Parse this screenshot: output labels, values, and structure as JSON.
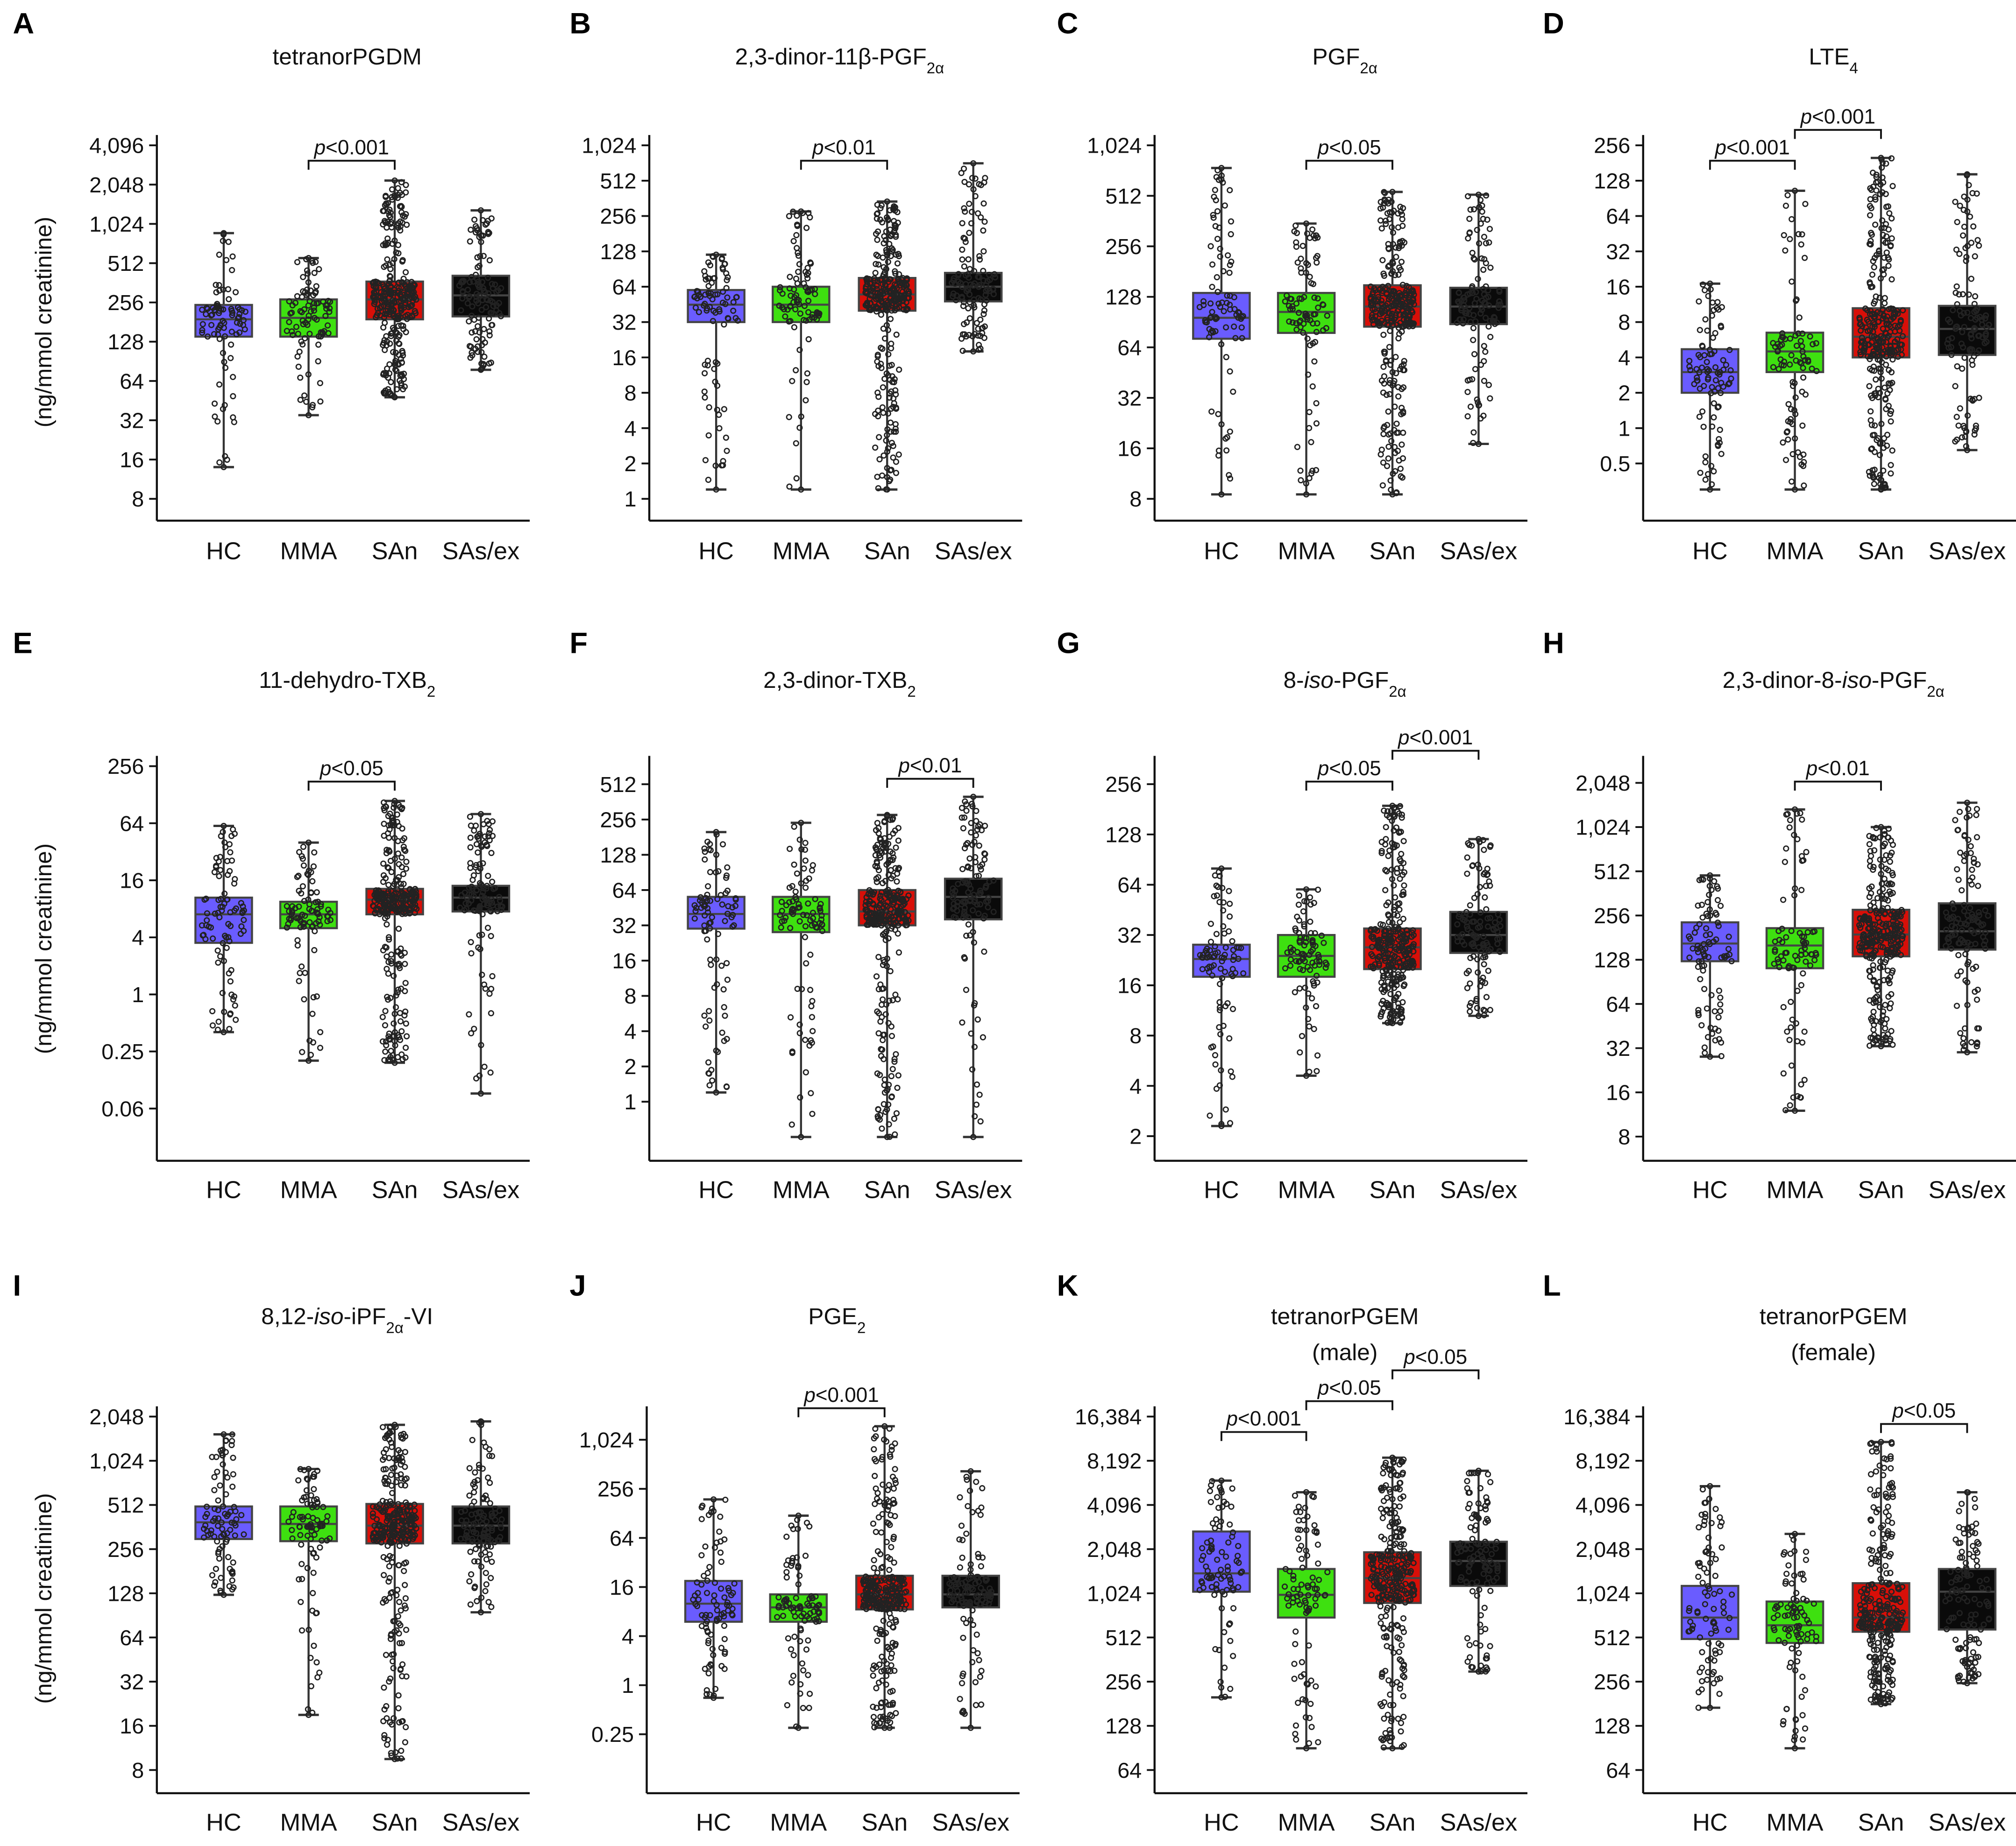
{
  "chart_data": {
    "type": "box",
    "groups": [
      "HC",
      "MMA",
      "SAn",
      "SAs/ex"
    ],
    "colors": {
      "HC": "#6a5cff",
      "MMA": "#3ee010",
      "SAn": "#d80f08",
      "SAs/ex": "#0a0a0a"
    },
    "ylabel": "(ng/mmol creatinine)",
    "yscale": "log2",
    "panels": [
      {
        "letter": "A",
        "title": [
          [
            {
              "t": "tetranorPGDM"
            }
          ]
        ],
        "ylim": [
          8,
          4096
        ],
        "ticks": [
          [
            "4,096",
            4096
          ],
          [
            "2,048",
            2048
          ],
          [
            "1,024",
            1024
          ],
          [
            "512",
            512
          ],
          [
            "256",
            256
          ],
          [
            "128",
            128
          ],
          [
            "64",
            64
          ],
          [
            "32",
            32
          ],
          [
            "16",
            16
          ],
          [
            "8",
            8
          ]
        ],
        "boxes": [
          [
            14,
            140,
            190,
            245,
            870
          ],
          [
            35,
            140,
            195,
            270,
            560
          ],
          [
            48,
            190,
            270,
            370,
            2200
          ],
          [
            78,
            200,
            290,
            410,
            1300
          ]
        ],
        "pvalues": [
          {
            "from": 1,
            "to": 2,
            "label": "<0.001"
          }
        ]
      },
      {
        "letter": "B",
        "title": [
          [
            {
              "t": "2,3-dinor-11β-PGF"
            },
            {
              "t": "2α",
              "s": "sub"
            }
          ]
        ],
        "ylim": [
          1,
          1024
        ],
        "ticks": [
          [
            "1,024",
            1024
          ],
          [
            "512",
            512
          ],
          [
            "256",
            256
          ],
          [
            "128",
            128
          ],
          [
            "64",
            64
          ],
          [
            "32",
            32
          ],
          [
            "16",
            16
          ],
          [
            "8",
            8
          ],
          [
            "4",
            4
          ],
          [
            "2",
            2
          ],
          [
            "1",
            1
          ]
        ],
        "boxes": [
          [
            1.2,
            32,
            45,
            60,
            120
          ],
          [
            1.2,
            32,
            45,
            64,
            280
          ],
          [
            1.2,
            40,
            55,
            76,
            340
          ],
          [
            18,
            48,
            64,
            84,
            720
          ]
        ],
        "pvalues": [
          {
            "from": 1,
            "to": 2,
            "label": "<0.01"
          }
        ]
      },
      {
        "letter": "C",
        "title": [
          [
            {
              "t": "PGF"
            },
            {
              "t": "2α",
              "s": "sub"
            }
          ]
        ],
        "ylim": [
          8,
          1024
        ],
        "ticks": [
          [
            "1,024",
            1024
          ],
          [
            "512",
            512
          ],
          [
            "256",
            256
          ],
          [
            "128",
            128
          ],
          [
            "64",
            64
          ],
          [
            "32",
            32
          ],
          [
            "16",
            16
          ],
          [
            "8",
            8
          ]
        ],
        "boxes": [
          [
            8.5,
            72,
            96,
            135,
            750
          ],
          [
            8.5,
            78,
            104,
            135,
            350
          ],
          [
            8.5,
            85,
            112,
            150,
            540
          ],
          [
            17,
            88,
            112,
            145,
            520
          ]
        ],
        "pvalues": [
          {
            "from": 1,
            "to": 2,
            "label": "<0.05"
          }
        ]
      },
      {
        "letter": "D",
        "title": [
          [
            {
              "t": "LTE"
            },
            {
              "t": "4",
              "s": "sub"
            }
          ]
        ],
        "ylim": [
          0.25,
          256
        ],
        "ticks": [
          [
            "256",
            256
          ],
          [
            "128",
            128
          ],
          [
            "64",
            64
          ],
          [
            "32",
            32
          ],
          [
            "16",
            16
          ],
          [
            "8",
            8
          ],
          [
            "4",
            4
          ],
          [
            "2",
            2
          ],
          [
            "1",
            1
          ],
          [
            "0.5",
            0.5
          ]
        ],
        "boxes": [
          [
            0.3,
            2,
            3,
            4.7,
            17
          ],
          [
            0.3,
            3,
            4.5,
            6.5,
            105
          ],
          [
            0.3,
            4,
            6,
            10.5,
            200
          ],
          [
            0.65,
            4.2,
            7,
            11,
            145
          ]
        ],
        "pvalues": [
          {
            "from": 0,
            "to": 1,
            "label": "<0.001"
          },
          {
            "from": 1,
            "to": 2,
            "label": "<0.001"
          }
        ]
      },
      {
        "letter": "E",
        "title": [
          [
            {
              "t": "11-dehydro-TXB"
            },
            {
              "t": "2",
              "s": "sub"
            }
          ]
        ],
        "ylim": [
          0.036,
          256
        ],
        "ticks": [
          [
            "256",
            256
          ],
          [
            "64",
            64
          ],
          [
            "16",
            16
          ],
          [
            "4",
            4
          ],
          [
            "1",
            1
          ],
          [
            "0.25",
            0.25
          ],
          [
            "0.06",
            0.0625
          ]
        ],
        "boxes": [
          [
            0.4,
            3.5,
            7,
            10.5,
            60
          ],
          [
            0.2,
            5,
            7,
            9.5,
            40
          ],
          [
            0.19,
            7,
            10,
            13,
            110
          ],
          [
            0.09,
            7.5,
            10.5,
            14,
            80
          ]
        ],
        "pvalues": [
          {
            "from": 1,
            "to": 2,
            "label": "<0.05"
          }
        ]
      },
      {
        "letter": "F",
        "title": [
          [
            {
              "t": "2,3-dinor-TXB"
            },
            {
              "t": "2",
              "s": "sub"
            }
          ]
        ],
        "ylim": [
          0.56,
          730
        ],
        "ticks": [
          [
            "512",
            512
          ],
          [
            "256",
            256
          ],
          [
            "128",
            128
          ],
          [
            "64",
            64
          ],
          [
            "32",
            32
          ],
          [
            "16",
            16
          ],
          [
            "8",
            8
          ],
          [
            "4",
            4
          ],
          [
            "2",
            2
          ],
          [
            "1",
            1
          ]
        ],
        "boxes": [
          [
            1.2,
            30,
            40,
            56,
            200
          ],
          [
            0.5,
            28,
            40,
            56,
            240
          ],
          [
            0.5,
            32,
            42,
            64,
            280
          ],
          [
            0.5,
            36,
            56,
            80,
            400
          ]
        ],
        "pvalues": [
          {
            "from": 2,
            "to": 3,
            "label": "<0.01"
          }
        ]
      },
      {
        "letter": "G",
        "title": [
          [
            {
              "t": "8-"
            },
            {
              "t": "iso",
              "s": "i"
            },
            {
              "t": "-PGF"
            },
            {
              "t": "2α",
              "s": "sub"
            }
          ]
        ],
        "ylim": [
          2.14,
          328
        ],
        "ticks": [
          [
            "256",
            256
          ],
          [
            "128",
            128
          ],
          [
            "64",
            64
          ],
          [
            "32",
            32
          ],
          [
            "16",
            16
          ],
          [
            "8",
            8
          ],
          [
            "4",
            4
          ],
          [
            "2",
            2
          ]
        ],
        "boxes": [
          [
            2.3,
            18,
            23,
            28,
            80
          ],
          [
            4.6,
            18,
            24,
            32,
            60
          ],
          [
            9.5,
            20,
            27,
            35,
            190
          ],
          [
            10.5,
            25,
            32,
            44,
            120
          ]
        ],
        "pvalues": [
          {
            "from": 1,
            "to": 2,
            "label": "<0.05"
          },
          {
            "from": 2,
            "to": 3,
            "label": "<0.001"
          }
        ]
      },
      {
        "letter": "H",
        "title": [
          [
            {
              "t": "2,3-dinor-8-"
            },
            {
              "t": "iso",
              "s": "i"
            },
            {
              "t": "-PGF"
            },
            {
              "t": "2α",
              "s": "sub"
            }
          ]
        ],
        "ylim": [
          8.7,
          2660
        ],
        "ticks": [
          [
            "2,048",
            2048
          ],
          [
            "1,024",
            1024
          ],
          [
            "512",
            512
          ],
          [
            "256",
            256
          ],
          [
            "128",
            128
          ],
          [
            "64",
            64
          ],
          [
            "32",
            32
          ],
          [
            "16",
            16
          ],
          [
            "8",
            8
          ]
        ],
        "boxes": [
          [
            28,
            125,
            165,
            230,
            480
          ],
          [
            12,
            112,
            160,
            210,
            1350
          ],
          [
            33,
            135,
            190,
            280,
            1024
          ],
          [
            30,
            150,
            200,
            310,
            1500
          ]
        ],
        "pvalues": [
          {
            "from": 1,
            "to": 2,
            "label": "<0.01"
          }
        ]
      },
      {
        "letter": "I",
        "title": [
          [
            {
              "t": "8,12-"
            },
            {
              "t": "iso",
              "s": "i"
            },
            {
              "t": "-iPF"
            },
            {
              "t": "2α",
              "s": "sub"
            },
            {
              "t": "-VI"
            }
          ]
        ],
        "ylim": [
          6.8,
          2048
        ],
        "ticks": [
          [
            "2,048",
            2048
          ],
          [
            "1,024",
            1024
          ],
          [
            "512",
            512
          ],
          [
            "256",
            256
          ],
          [
            "128",
            128
          ],
          [
            "64",
            64
          ],
          [
            "32",
            32
          ],
          [
            "16",
            16
          ],
          [
            "8",
            8
          ]
        ],
        "boxes": [
          [
            125,
            300,
            390,
            500,
            1550
          ],
          [
            19,
            290,
            380,
            500,
            900
          ],
          [
            9.5,
            280,
            370,
            520,
            1800
          ],
          [
            95,
            280,
            370,
            500,
            1900
          ]
        ],
        "pvalues": []
      },
      {
        "letter": "J",
        "title": [
          [
            {
              "t": "PGE"
            },
            {
              "t": "2",
              "s": "sub"
            }
          ]
        ],
        "ylim": [
          0.068,
          1970
        ],
        "ticks": [
          [
            "1,024",
            1024
          ],
          [
            "256",
            256
          ],
          [
            "64",
            64
          ],
          [
            "16",
            16
          ],
          [
            "4",
            4
          ],
          [
            "1",
            1
          ],
          [
            "0.25",
            0.25
          ]
        ],
        "boxes": [
          [
            0.7,
            6,
            10,
            19,
            190
          ],
          [
            0.3,
            6,
            9,
            13,
            120
          ],
          [
            0.3,
            8.5,
            13,
            22,
            1500
          ],
          [
            0.3,
            9,
            13,
            22,
            420
          ]
        ],
        "pvalues": [
          {
            "from": 1,
            "to": 2,
            "label": "<0.001"
          }
        ]
      },
      {
        "letter": "K",
        "title": [
          [
            {
              "t": "tetranorPGEM"
            }
          ],
          [
            {
              "t": "(male)"
            }
          ]
        ],
        "ylim": [
          54.4,
          16384
        ],
        "ticks": [
          [
            "16,384",
            16384
          ],
          [
            "8,192",
            8192
          ],
          [
            "4,096",
            4096
          ],
          [
            "2,048",
            2048
          ],
          [
            "1,024",
            1024
          ],
          [
            "512",
            512
          ],
          [
            "256",
            256
          ],
          [
            "128",
            128
          ],
          [
            "64",
            64
          ]
        ],
        "boxes": [
          [
            200,
            1050,
            1400,
            2700,
            6000
          ],
          [
            90,
            700,
            1000,
            1500,
            5000
          ],
          [
            90,
            880,
            1300,
            1950,
            8600
          ],
          [
            300,
            1150,
            1700,
            2300,
            7000
          ]
        ],
        "pvalues": [
          {
            "from": 0,
            "to": 1,
            "label": "<0.001"
          },
          {
            "from": 1,
            "to": 2,
            "label": "<0.05"
          },
          {
            "from": 2,
            "to": 3,
            "label": "<0.05"
          }
        ]
      },
      {
        "letter": "L",
        "title": [
          [
            {
              "t": "tetranorPGEM"
            }
          ],
          [
            {
              "t": "(female)"
            }
          ]
        ],
        "ylim": [
          54.4,
          16384
        ],
        "ticks": [
          [
            "16,384",
            16384
          ],
          [
            "8,192",
            8192
          ],
          [
            "4,096",
            4096
          ],
          [
            "2,048",
            2048
          ],
          [
            "1,024",
            1024
          ],
          [
            "512",
            512
          ],
          [
            "256",
            256
          ],
          [
            "128",
            128
          ],
          [
            "64",
            64
          ]
        ],
        "boxes": [
          [
            170,
            500,
            700,
            1150,
            5500
          ],
          [
            90,
            470,
            620,
            900,
            2600
          ],
          [
            180,
            560,
            700,
            1200,
            11000
          ],
          [
            250,
            580,
            1050,
            1500,
            5000
          ]
        ],
        "pvalues": [
          {
            "from": 2,
            "to": 3,
            "label": "<0.05"
          }
        ]
      }
    ],
    "p_prefix": "p"
  }
}
